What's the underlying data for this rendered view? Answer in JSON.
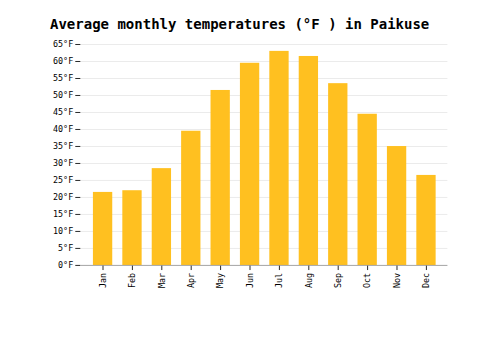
{
  "chart_data": {
    "type": "bar",
    "title": "Average monthly temperatures (°F ) in Paikuse",
    "categories": [
      "Jan",
      "Feb",
      "Mar",
      "Apr",
      "May",
      "Jun",
      "Jul",
      "Aug",
      "Sep",
      "Oct",
      "Nov",
      "Dec"
    ],
    "values": [
      21.5,
      22.0,
      28.5,
      39.5,
      51.5,
      59.5,
      63.0,
      61.5,
      53.5,
      44.5,
      35.0,
      26.5
    ],
    "color": "#FFC020",
    "ylim": [
      0,
      65
    ],
    "yticks": [
      {
        "value": 0,
        "label": "0°F"
      },
      {
        "value": 5,
        "label": "5°F"
      },
      {
        "value": 10,
        "label": "10°F"
      },
      {
        "value": 15,
        "label": "15°F"
      },
      {
        "value": 20,
        "label": "20°F"
      },
      {
        "value": 25,
        "label": "25°F"
      },
      {
        "value": 30,
        "label": "30°F"
      },
      {
        "value": 35,
        "label": "35°F"
      },
      {
        "value": 40,
        "label": "40°F"
      },
      {
        "value": 45,
        "label": "45°F"
      },
      {
        "value": 50,
        "label": "50°F"
      },
      {
        "value": 55,
        "label": "55°F"
      },
      {
        "value": 60,
        "label": "60°F"
      },
      {
        "value": 65,
        "label": "65°F"
      }
    ],
    "grid": true
  }
}
